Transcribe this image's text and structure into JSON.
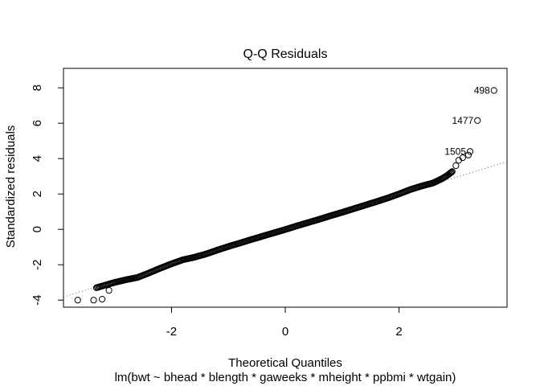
{
  "chart_data": {
    "type": "scatter",
    "title": "Q-Q Residuals",
    "xlabel": "Theoretical Quantiles",
    "subtitle": "lm(bwt ~ bhead * blength * gaweeks * mheight * ppbmi * wtgain)",
    "ylabel": "Standardized residuals",
    "x_ticks": [
      -2,
      0,
      2
    ],
    "y_ticks": [
      -4,
      -2,
      0,
      2,
      4,
      6,
      8
    ],
    "xlim": [
      -3.9,
      3.9
    ],
    "ylim": [
      -4.4,
      9.1
    ],
    "grid": false,
    "reference_line": {
      "style": "dotted",
      "slope": 0.98,
      "intercept": 0
    },
    "curve_points": [
      [
        -3.32,
        -3.3
      ],
      [
        -3.0,
        -3.0
      ],
      [
        -2.8,
        -2.85
      ],
      [
        -2.6,
        -2.72
      ],
      [
        -2.4,
        -2.47
      ],
      [
        -2.2,
        -2.2
      ],
      [
        -2.0,
        -1.95
      ],
      [
        -1.8,
        -1.72
      ],
      [
        -1.6,
        -1.58
      ],
      [
        -1.4,
        -1.4
      ],
      [
        -1.2,
        -1.18
      ],
      [
        -1.0,
        -0.97
      ],
      [
        -0.8,
        -0.78
      ],
      [
        -0.6,
        -0.58
      ],
      [
        -0.4,
        -0.39
      ],
      [
        -0.2,
        -0.2
      ],
      [
        0.0,
        -0.01
      ],
      [
        0.2,
        0.19
      ],
      [
        0.4,
        0.38
      ],
      [
        0.6,
        0.57
      ],
      [
        0.8,
        0.77
      ],
      [
        1.0,
        0.96
      ],
      [
        1.2,
        1.16
      ],
      [
        1.4,
        1.36
      ],
      [
        1.6,
        1.56
      ],
      [
        1.8,
        1.77
      ],
      [
        2.0,
        2.0
      ],
      [
        2.2,
        2.25
      ],
      [
        2.4,
        2.45
      ],
      [
        2.6,
        2.62
      ],
      [
        2.75,
        2.85
      ],
      [
        2.85,
        3.05
      ],
      [
        2.95,
        3.3
      ]
    ],
    "tail_points": [
      [
        -3.65,
        -4.0
      ],
      [
        -3.37,
        -4.0
      ],
      [
        -3.22,
        -3.95
      ],
      [
        -3.1,
        -3.45
      ],
      [
        3.0,
        3.6
      ],
      [
        3.05,
        3.9
      ],
      [
        3.12,
        4.05
      ],
      [
        3.22,
        4.2
      ]
    ],
    "labeled_points": [
      {
        "label": "498",
        "x": 3.67,
        "y": 7.85
      },
      {
        "label": "1477",
        "x": 3.38,
        "y": 6.15
      },
      {
        "label": "1505",
        "x": 3.25,
        "y": 4.4
      }
    ]
  }
}
